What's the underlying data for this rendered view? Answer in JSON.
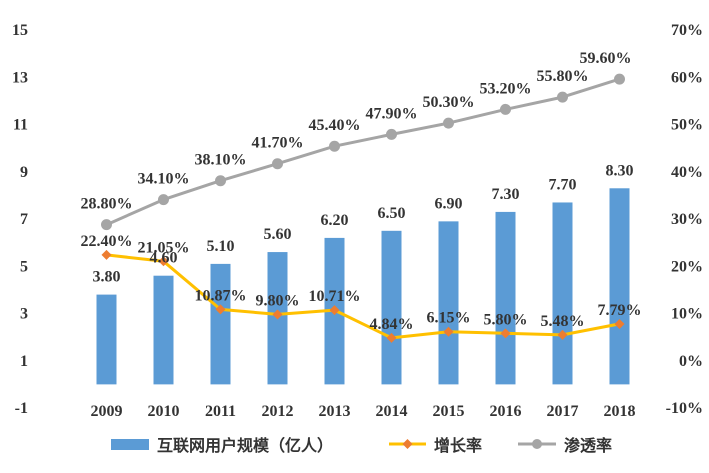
{
  "chart_data": {
    "type": "bar",
    "categories": [
      "2009",
      "2010",
      "2011",
      "2012",
      "2013",
      "2014",
      "2015",
      "2016",
      "2017",
      "2018"
    ],
    "series": [
      {
        "name": "互联网用户规模（亿人）",
        "type": "bar",
        "axis": "left",
        "color": "#5b9bd5",
        "values": [
          3.8,
          4.6,
          5.1,
          5.6,
          6.2,
          6.5,
          6.9,
          7.3,
          7.7,
          8.3
        ],
        "labels": [
          "3.80",
          "4.60",
          "5.10",
          "5.60",
          "6.20",
          "6.50",
          "6.90",
          "7.30",
          "7.70",
          "8.30"
        ]
      },
      {
        "name": "增长率",
        "type": "line",
        "axis": "right",
        "color": "#ffc000",
        "marker_color": "#ed7d31",
        "values": [
          22.4,
          21.05,
          10.87,
          9.8,
          10.71,
          4.84,
          6.15,
          5.8,
          5.48,
          7.79
        ],
        "labels": [
          "22.40%",
          "21.05%",
          "10.87%",
          "9.80%",
          "10.71%",
          "4.84%",
          "6.15%",
          "5.80%",
          "5.48%",
          "7.79%"
        ]
      },
      {
        "name": "渗透率",
        "type": "line",
        "axis": "right",
        "color": "#a5a5a5",
        "values": [
          28.8,
          34.1,
          38.1,
          41.7,
          45.4,
          47.9,
          50.3,
          53.2,
          55.8,
          59.6
        ],
        "labels": [
          "28.80%",
          "34.10%",
          "38.10%",
          "41.70%",
          "45.40%",
          "47.90%",
          "50.30%",
          "53.20%",
          "55.80%",
          "59.60%"
        ]
      }
    ],
    "left_axis": {
      "ylim": [
        -1,
        15
      ],
      "ticks": [
        "-1",
        "1",
        "3",
        "5",
        "7",
        "9",
        "11",
        "13",
        "15"
      ]
    },
    "right_axis": {
      "ylim": [
        -10,
        70
      ],
      "ticks": [
        "-10%",
        "0%",
        "10%",
        "20%",
        "30%",
        "40%",
        "50%",
        "60%",
        "70%"
      ]
    },
    "grid": false,
    "legend": "bottom"
  }
}
